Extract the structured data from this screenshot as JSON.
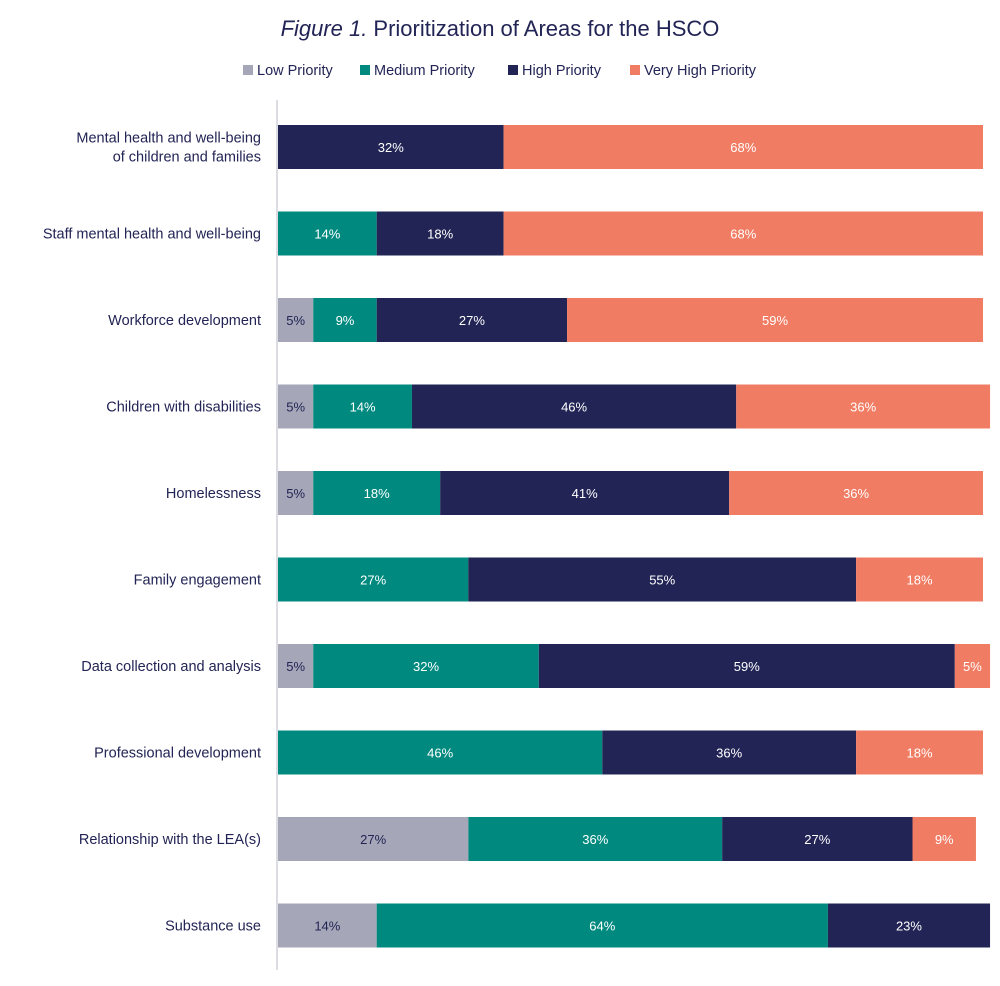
{
  "chart_data": {
    "type": "bar",
    "orientation": "horizontal",
    "stacked": true,
    "title_prefix": "Figure 1.",
    "title": "Prioritization of Areas for the HSCO",
    "xlim": [
      0,
      100
    ],
    "grid": false,
    "legend_position": "top",
    "categories": [
      [
        "Mental health and well-being",
        "of children and families"
      ],
      [
        "Staff mental health and well-being"
      ],
      [
        "Workforce development"
      ],
      [
        "Children with disabilities"
      ],
      [
        "Homelessness"
      ],
      [
        "Family engagement"
      ],
      [
        "Data collection and analysis"
      ],
      [
        "Professional development"
      ],
      [
        "Relationship with the LEA(s)"
      ],
      [
        "Substance use"
      ]
    ],
    "series": [
      {
        "name": "Low Priority",
        "color": "#a5a7b8",
        "text_color": "#222455",
        "values": [
          0,
          0,
          5,
          5,
          5,
          0,
          5,
          0,
          27,
          14
        ]
      },
      {
        "name": "Medium Priority",
        "color": "#008a7f",
        "text_color": "#ffffff",
        "values": [
          0,
          14,
          9,
          14,
          18,
          27,
          32,
          46,
          36,
          64
        ]
      },
      {
        "name": "High Priority",
        "color": "#222455",
        "text_color": "#ffffff",
        "values": [
          32,
          18,
          27,
          46,
          41,
          55,
          59,
          36,
          27,
          23
        ]
      },
      {
        "name": "Very High Priority",
        "color": "#f07c63",
        "text_color": "#ffffff",
        "values": [
          68,
          68,
          59,
          36,
          36,
          18,
          5,
          18,
          9,
          0
        ]
      }
    ],
    "value_suffix": "%"
  }
}
